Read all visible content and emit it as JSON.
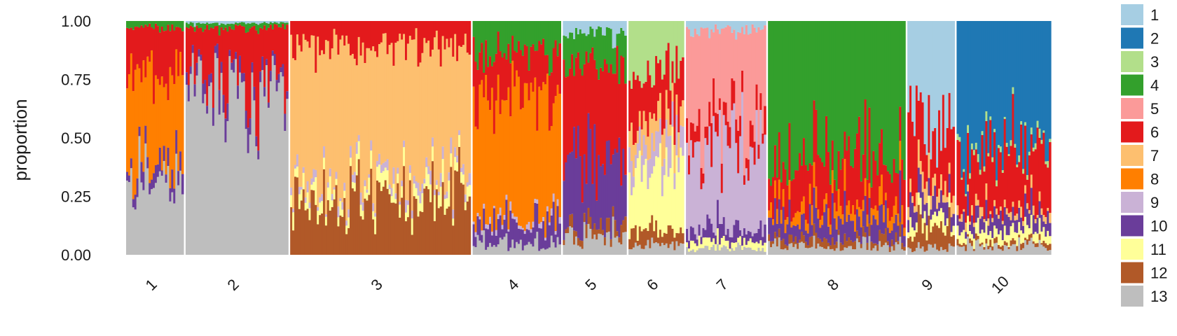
{
  "chart_data": {
    "type": "bar",
    "stacked": true,
    "title": "",
    "xlabel": "",
    "ylabel": "proportion",
    "ylim": [
      0,
      1
    ],
    "y_ticks": [
      "0.00",
      "0.25",
      "0.50",
      "0.75",
      "1.00"
    ],
    "y_tick_values": [
      0,
      0.25,
      0.5,
      0.75,
      1
    ],
    "grid": false,
    "legend_position": "right",
    "series": [
      {
        "name": "1",
        "color": "#A6CEE3"
      },
      {
        "name": "2",
        "color": "#1F78B4"
      },
      {
        "name": "3",
        "color": "#B2DF8A"
      },
      {
        "name": "4",
        "color": "#33A02C"
      },
      {
        "name": "5",
        "color": "#FB9A99"
      },
      {
        "name": "6",
        "color": "#E31A1C"
      },
      {
        "name": "7",
        "color": "#FDBF6F"
      },
      {
        "name": "8",
        "color": "#FF7F00"
      },
      {
        "name": "9",
        "color": "#CAB2D6"
      },
      {
        "name": "10",
        "color": "#6A3D9A"
      },
      {
        "name": "11",
        "color": "#FFFF99"
      },
      {
        "name": "12",
        "color": "#B15928"
      },
      {
        "name": "13",
        "color": "#BEBEBE"
      }
    ],
    "groups": [
      {
        "label": "1",
        "n": 28,
        "mean": {
          "13": 0.33,
          "10": 0.06,
          "8": 0.38,
          "6": 0.2,
          "4": 0.03
        }
      },
      {
        "label": "2",
        "n": 50,
        "mean": {
          "13": 0.7,
          "10": 0.05,
          "6": 0.22,
          "1": 0.01,
          "4": 0.02
        }
      },
      {
        "label": "3",
        "n": 88,
        "mean": {
          "12": 0.22,
          "11": 0.05,
          "9": 0.03,
          "7": 0.6,
          "6": 0.1
        }
      },
      {
        "label": "4",
        "n": 43,
        "mean": {
          "13": 0.05,
          "10": 0.09,
          "9": 0.02,
          "8": 0.55,
          "6": 0.17,
          "4": 0.12
        }
      },
      {
        "label": "5",
        "n": 31,
        "mean": {
          "13": 0.07,
          "10": 0.28,
          "12": 0.04,
          "6": 0.42,
          "4": 0.14,
          "1": 0.05
        }
      },
      {
        "label": "6",
        "n": 27,
        "mean": {
          "13": 0.04,
          "12": 0.06,
          "11": 0.3,
          "9": 0.1,
          "6": 0.2,
          "7": 0.1,
          "3": 0.2
        }
      },
      {
        "label": "7",
        "n": 39,
        "mean": {
          "13": 0.03,
          "11": 0.03,
          "10": 0.05,
          "9": 0.35,
          "6": 0.1,
          "5": 0.4,
          "1": 0.04
        }
      },
      {
        "label": "8",
        "n": 67,
        "mean": {
          "13": 0.04,
          "10": 0.09,
          "12": 0.03,
          "8": 0.06,
          "6": 0.2,
          "4": 0.58
        }
      },
      {
        "label": "9",
        "n": 23,
        "mean": {
          "13": 0.03,
          "12": 0.1,
          "11": 0.05,
          "10": 0.07,
          "6": 0.27,
          "7": 0.06,
          "1": 0.42
        }
      },
      {
        "label": "10",
        "n": 46,
        "mean": {
          "13": 0.04,
          "11": 0.05,
          "10": 0.06,
          "12": 0.02,
          "6": 0.25,
          "7": 0.03,
          "3": 0.02,
          "2": 0.53
        }
      }
    ]
  }
}
